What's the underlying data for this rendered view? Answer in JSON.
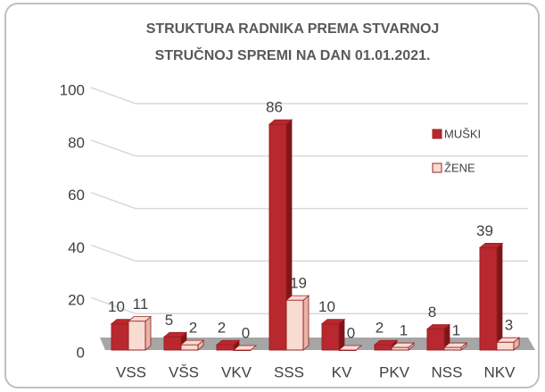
{
  "chart_data": {
    "type": "bar3d",
    "title": [
      "STRUKTURA RADNIKA PREMA STVARNOJ",
      "STRUČNOJ SPREMI NA DAN 01.01.2021."
    ],
    "categories": [
      "VSS",
      "VŠS",
      "VKV",
      "SSS",
      "KV",
      "PKV",
      "NSS",
      "NKV"
    ],
    "series": [
      {
        "name": "MUŠKI",
        "color": "#b8282e",
        "values": [
          10,
          5,
          2,
          86,
          10,
          2,
          8,
          39
        ]
      },
      {
        "name": "ŽENE",
        "color": "#f8dcd2",
        "values": [
          11,
          2,
          0,
          19,
          0,
          1,
          1,
          3
        ]
      }
    ],
    "ylim": [
      0,
      100
    ],
    "yticks": [
      0,
      20,
      40,
      60,
      80,
      100
    ],
    "grid": true,
    "legend": "right"
  }
}
